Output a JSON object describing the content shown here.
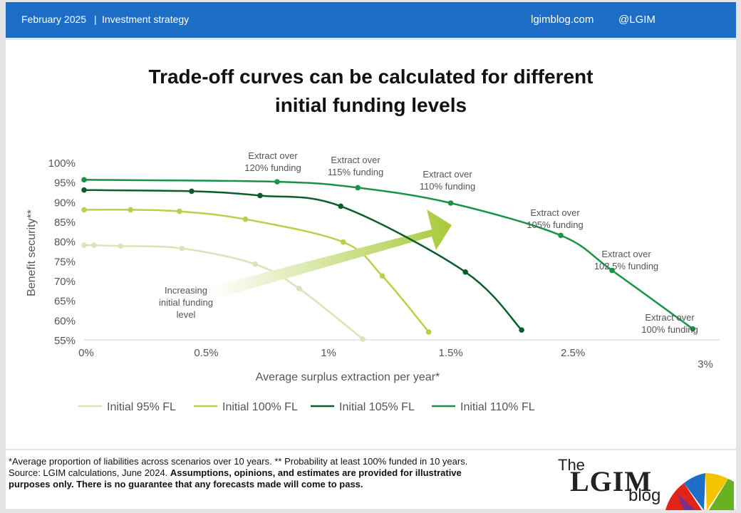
{
  "header": {
    "date": "February 2025",
    "separator": "|",
    "section": "Investment strategy",
    "site": "lgimblog.com",
    "handle": "@LGIM"
  },
  "title_lines": [
    "Trade-off curves can be calculated for different",
    "initial funding levels"
  ],
  "chart_data": {
    "type": "line",
    "title": "Trade-off curves can be calculated for different initial funding levels",
    "xlabel": "Average surplus extraction per year*",
    "ylabel": "Benefit security**",
    "x_tick_labels": [
      "0%",
      "0.5%",
      "1%",
      "1.5%",
      "2.5%",
      "3%"
    ],
    "y_tick_labels": [
      "100%",
      "95%",
      "90%",
      "85%",
      "80%",
      "75%",
      "70%",
      "65%",
      "60%",
      "55%"
    ],
    "xlim": [
      0,
      2.6
    ],
    "ylim": [
      55,
      100
    ],
    "grid": false,
    "legend_position": "bottom",
    "series": [
      {
        "name": "Initial 95% FL",
        "color": "#d9e4b8",
        "x": [
          0.0,
          0.04,
          0.15,
          0.4,
          0.7,
          0.88,
          1.14
        ],
        "y": [
          79.0,
          79.0,
          78.8,
          78.2,
          74.2,
          68.0,
          55.2
        ]
      },
      {
        "name": "Initial 100% FL",
        "color": "#b7d14a",
        "x": [
          0.0,
          0.19,
          0.39,
          0.66,
          1.06,
          1.22,
          1.41
        ],
        "y": [
          88.0,
          88.0,
          87.6,
          85.6,
          79.8,
          71.2,
          57.0
        ]
      },
      {
        "name": "Initial 105% FL",
        "color": "#0b5e2c",
        "x": [
          0.0,
          0.44,
          0.72,
          1.05,
          1.56,
          1.79
        ],
        "y": [
          93.0,
          92.7,
          91.6,
          88.9,
          72.2,
          57.5
        ]
      },
      {
        "name": "Initial 110% FL",
        "color": "#179447",
        "x": [
          0.0,
          0.79,
          1.12,
          1.5,
          1.95,
          2.16,
          2.49
        ],
        "y": [
          95.6,
          95.1,
          93.6,
          89.7,
          81.5,
          72.6,
          57.8
        ]
      }
    ],
    "annotations": [
      {
        "lines": [
          "Extract over",
          "120% funding"
        ],
        "point_series": 3,
        "point_index": 1
      },
      {
        "lines": [
          "Extract over",
          "115% funding"
        ],
        "point_series": 3,
        "point_index": 2
      },
      {
        "lines": [
          "Extract over",
          "110% funding"
        ],
        "point_series": 3,
        "point_index": 3
      },
      {
        "lines": [
          "Extract over",
          "105% funding"
        ],
        "point_series": 3,
        "point_index": 4
      },
      {
        "lines": [
          "Extract over",
          "102.5% funding"
        ],
        "point_series": 3,
        "point_index": 5
      },
      {
        "lines": [
          "Extract over",
          "100% funding"
        ],
        "point_series": 3,
        "point_index": 6
      }
    ],
    "arrow_label_lines": [
      "Increasing",
      "initial funding",
      "level"
    ]
  },
  "footnote": {
    "line1": "*Average proportion of liabilities across scenarios over 10 years. ** Probability at least 100% funded in 10 years.",
    "line2_plain": "Source: LGIM calculations, June 2024. ",
    "line2_bold": "Assumptions, opinions, and estimates are provided for illustrative",
    "line3_bold": "purposes only. There is no guarantee that any forecasts made will come to pass."
  },
  "logo": {
    "the": "The",
    "brand": "LGIM",
    "blog": "blog"
  },
  "colors": {
    "header": "#1e6ec8",
    "arrow_start": "#ffffff",
    "arrow_end": "#a8c93a"
  }
}
